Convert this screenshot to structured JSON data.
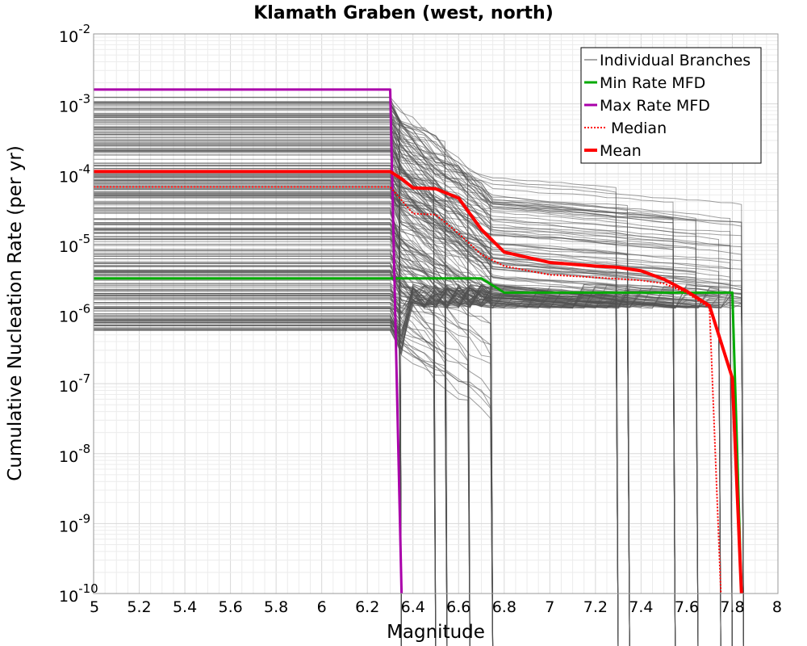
{
  "chart_data": {
    "type": "line",
    "title": "Klamath Graben (west, north)",
    "xlabel": "Magnitude",
    "ylabel": "Cumulative Nucleation Rate (per yr)",
    "xlim": [
      5,
      8
    ],
    "ylim_log10": [
      -10,
      -2
    ],
    "y_scale": "log",
    "grid": true,
    "legend_position": "top-right",
    "x_tick_labels": [
      "5",
      "5.2",
      "5.4",
      "5.6",
      "5.8",
      "6",
      "6.2",
      "6.4",
      "6.6",
      "6.8",
      "7",
      "7.2",
      "7.4",
      "7.6",
      "7.8",
      "8"
    ],
    "y_tick_labels": [
      {
        "base": "10",
        "exp": "-2"
      },
      {
        "base": "10",
        "exp": "-3"
      },
      {
        "base": "10",
        "exp": "-4"
      },
      {
        "base": "10",
        "exp": "-5"
      },
      {
        "base": "10",
        "exp": "-6"
      },
      {
        "base": "10",
        "exp": "-7"
      },
      {
        "base": "10",
        "exp": "-8"
      },
      {
        "base": "10",
        "exp": "-9"
      },
      {
        "base": "10",
        "exp": "-10"
      }
    ],
    "series": [
      {
        "name": "Individual Branches",
        "color": "#505050",
        "note": "~300 logic-tree branch MFDs, flat rate 5.0-6.3, cut-off magnitudes between 6.3 and 7.85"
      },
      {
        "name": "Min Rate MFD",
        "color": "#00aa00",
        "x": [
          5.0,
          6.3,
          6.35,
          6.7,
          6.8,
          7.5,
          7.8,
          7.84
        ],
        "y": [
          3.2e-06,
          3.2e-06,
          3.2e-06,
          3.2e-06,
          2e-06,
          2e-06,
          2e-06,
          1e-10
        ]
      },
      {
        "name": "Max Rate MFD",
        "color": "#aa00aa",
        "x": [
          5.0,
          6.3,
          6.35
        ],
        "y": [
          0.0016,
          0.0016,
          1e-10
        ]
      },
      {
        "name": "Median",
        "color": "#ff0000",
        "style": "dotted",
        "x": [
          5.0,
          6.3,
          6.35,
          6.4,
          6.5,
          6.6,
          6.7,
          6.8,
          7.0,
          7.2,
          7.4,
          7.5,
          7.6,
          7.7,
          7.75
        ],
        "y": [
          6.5e-05,
          6.5e-05,
          4.2e-05,
          2.7e-05,
          2.6e-05,
          1.4e-05,
          7e-06,
          4.8e-06,
          3.6e-06,
          3.3e-06,
          3e-06,
          2.7e-06,
          2e-06,
          1.2e-06,
          1e-10
        ]
      },
      {
        "name": "Mean",
        "color": "#ff0000",
        "x": [
          5.0,
          6.3,
          6.35,
          6.4,
          6.5,
          6.6,
          6.7,
          6.8,
          7.0,
          7.2,
          7.3,
          7.4,
          7.5,
          7.6,
          7.7,
          7.8,
          7.84
        ],
        "y": [
          0.000108,
          0.000108,
          8.5e-05,
          6.3e-05,
          6.1e-05,
          4.5e-05,
          1.6e-05,
          7.6e-06,
          5.4e-06,
          4.8e-06,
          4.6e-06,
          4.1e-06,
          3.1e-06,
          2.1e-06,
          1.3e-06,
          1.2e-07,
          1e-10
        ]
      }
    ]
  }
}
